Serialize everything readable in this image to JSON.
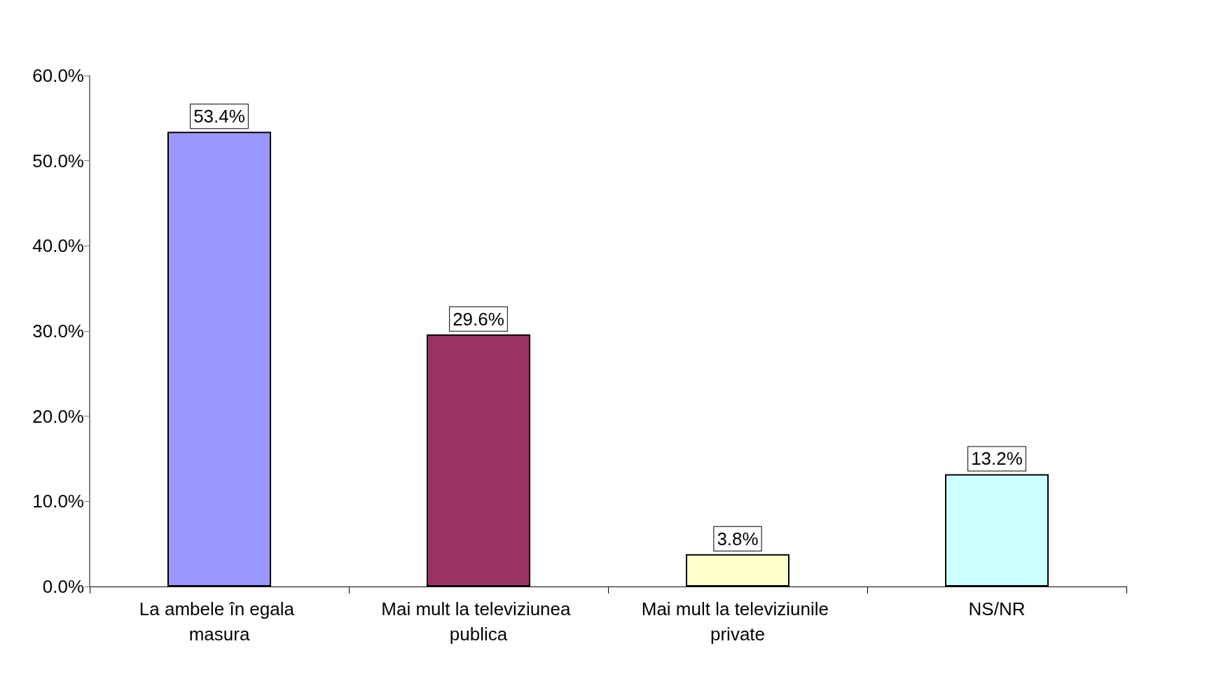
{
  "chart_data": {
    "type": "bar",
    "categories": [
      "La ambele în egala masura",
      "Mai mult la televiziunea publica",
      "Mai mult la televiziunile private",
      "NS/NR"
    ],
    "values": [
      53.4,
      29.6,
      3.8,
      13.2
    ],
    "colors": [
      "#9999ff",
      "#993366",
      "#ffffcc",
      "#ccffff"
    ],
    "value_labels": [
      "53.4%",
      "29.6%",
      "3.8%",
      "13.2%"
    ],
    "ylim": [
      0,
      60
    ],
    "yticks": [
      {
        "value": 0,
        "label": "0.0%"
      },
      {
        "value": 10,
        "label": "10.0%"
      },
      {
        "value": 20,
        "label": "20.0%"
      },
      {
        "value": 30,
        "label": "30.0%"
      },
      {
        "value": 40,
        "label": "40.0%"
      },
      {
        "value": 50,
        "label": "50.0%"
      },
      {
        "value": 60,
        "label": "60.0%"
      }
    ],
    "grid": false
  }
}
